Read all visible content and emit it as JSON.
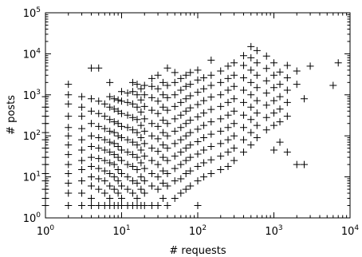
{
  "chart_data": {
    "type": "scatter",
    "title": "",
    "xlabel": "# requests",
    "ylabel": "# posts",
    "x_scale": "log",
    "y_scale": "log",
    "xlim": [
      1,
      10000
    ],
    "ylim": [
      1,
      100000
    ],
    "grid": false,
    "legend": "none",
    "marker": "+",
    "color": "#000000",
    "x_ticks": [
      {
        "value": 1,
        "base": "10",
        "exp": "0"
      },
      {
        "value": 10,
        "base": "10",
        "exp": "1"
      },
      {
        "value": 100,
        "base": "10",
        "exp": "2"
      },
      {
        "value": 1000,
        "base": "10",
        "exp": "3"
      },
      {
        "value": 10000,
        "base": "10",
        "exp": "4"
      }
    ],
    "y_ticks": [
      {
        "value": 1,
        "base": "10",
        "exp": "0"
      },
      {
        "value": 10,
        "base": "10",
        "exp": "1"
      },
      {
        "value": 100,
        "base": "10",
        "exp": "2"
      },
      {
        "value": 1000,
        "base": "10",
        "exp": "3"
      },
      {
        "value": 10000,
        "base": "10",
        "exp": "4"
      },
      {
        "value": 100000,
        "base": "10",
        "exp": "5"
      }
    ],
    "points": [
      [
        1,
        2
      ],
      [
        1,
        3
      ],
      [
        1,
        5
      ],
      [
        1,
        8
      ],
      [
        1,
        12
      ],
      [
        1,
        20
      ],
      [
        1,
        30
      ],
      [
        1,
        50
      ],
      [
        1,
        80
      ],
      [
        1,
        120
      ],
      [
        1,
        200
      ],
      [
        1,
        300
      ],
      [
        1,
        500
      ],
      [
        1,
        900
      ],
      [
        2,
        2
      ],
      [
        2,
        4
      ],
      [
        2,
        7
      ],
      [
        2,
        12
      ],
      [
        2,
        20
      ],
      [
        2,
        35
      ],
      [
        2,
        60
      ],
      [
        2,
        100
      ],
      [
        2,
        160
      ],
      [
        2,
        300
      ],
      [
        2,
        600
      ],
      [
        2,
        1000
      ],
      [
        2,
        1800
      ],
      [
        3,
        2
      ],
      [
        3,
        4
      ],
      [
        3,
        8
      ],
      [
        3,
        15
      ],
      [
        3,
        25
      ],
      [
        3,
        45
      ],
      [
        3,
        80
      ],
      [
        3,
        150
      ],
      [
        3,
        300
      ],
      [
        3,
        500
      ],
      [
        3,
        900
      ],
      [
        4,
        2
      ],
      [
        4,
        3
      ],
      [
        4,
        6
      ],
      [
        4,
        10
      ],
      [
        4,
        18
      ],
      [
        4,
        30
      ],
      [
        4,
        55
      ],
      [
        4,
        100
      ],
      [
        4,
        200
      ],
      [
        4,
        400
      ],
      [
        4,
        800
      ],
      [
        4,
        4500
      ],
      [
        5,
        2
      ],
      [
        5,
        5
      ],
      [
        5,
        9
      ],
      [
        5,
        16
      ],
      [
        5,
        28
      ],
      [
        5,
        50
      ],
      [
        5,
        90
      ],
      [
        5,
        170
      ],
      [
        5,
        350
      ],
      [
        5,
        700
      ],
      [
        5,
        4500
      ],
      [
        6,
        2
      ],
      [
        6,
        4
      ],
      [
        6,
        8
      ],
      [
        6,
        14
      ],
      [
        6,
        25
      ],
      [
        6,
        45
      ],
      [
        6,
        80
      ],
      [
        6,
        150
      ],
      [
        6,
        300
      ],
      [
        6,
        600
      ],
      [
        7,
        2
      ],
      [
        7,
        3
      ],
      [
        7,
        6
      ],
      [
        7,
        12
      ],
      [
        7,
        22
      ],
      [
        7,
        40
      ],
      [
        7,
        70
      ],
      [
        7,
        130
      ],
      [
        7,
        250
      ],
      [
        7,
        500
      ],
      [
        7,
        900
      ],
      [
        7,
        2000
      ],
      [
        8,
        2
      ],
      [
        8,
        5
      ],
      [
        8,
        10
      ],
      [
        8,
        20
      ],
      [
        8,
        35
      ],
      [
        8,
        65
      ],
      [
        8,
        120
      ],
      [
        8,
        220
      ],
      [
        8,
        450
      ],
      [
        8,
        800
      ],
      [
        9,
        2
      ],
      [
        9,
        4
      ],
      [
        9,
        8
      ],
      [
        9,
        15
      ],
      [
        9,
        30
      ],
      [
        9,
        55
      ],
      [
        9,
        100
      ],
      [
        9,
        200
      ],
      [
        9,
        400
      ],
      [
        9,
        750
      ],
      [
        10,
        2
      ],
      [
        10,
        3
      ],
      [
        10,
        6
      ],
      [
        10,
        12
      ],
      [
        10,
        25
      ],
      [
        10,
        45
      ],
      [
        10,
        90
      ],
      [
        10,
        170
      ],
      [
        10,
        350
      ],
      [
        10,
        700
      ],
      [
        10,
        1200
      ],
      [
        12,
        2
      ],
      [
        12,
        5
      ],
      [
        12,
        10
      ],
      [
        12,
        20
      ],
      [
        12,
        40
      ],
      [
        12,
        80
      ],
      [
        12,
        160
      ],
      [
        12,
        320
      ],
      [
        12,
        650
      ],
      [
        12,
        1100
      ],
      [
        14,
        2
      ],
      [
        14,
        4
      ],
      [
        14,
        8
      ],
      [
        14,
        18
      ],
      [
        14,
        35
      ],
      [
        14,
        70
      ],
      [
        14,
        140
      ],
      [
        14,
        280
      ],
      [
        14,
        600
      ],
      [
        14,
        1200
      ],
      [
        14,
        2000
      ],
      [
        16,
        2
      ],
      [
        16,
        3
      ],
      [
        16,
        7
      ],
      [
        16,
        15
      ],
      [
        16,
        30
      ],
      [
        16,
        60
      ],
      [
        16,
        120
      ],
      [
        16,
        250
      ],
      [
        16,
        500
      ],
      [
        16,
        1000
      ],
      [
        16,
        1800
      ],
      [
        18,
        2
      ],
      [
        18,
        5
      ],
      [
        18,
        10
      ],
      [
        18,
        22
      ],
      [
        18,
        45
      ],
      [
        18,
        90
      ],
      [
        18,
        180
      ],
      [
        18,
        380
      ],
      [
        18,
        750
      ],
      [
        18,
        1400
      ],
      [
        20,
        2
      ],
      [
        20,
        4
      ],
      [
        20,
        8
      ],
      [
        20,
        16
      ],
      [
        20,
        32
      ],
      [
        20,
        65
      ],
      [
        20,
        130
      ],
      [
        20,
        260
      ],
      [
        20,
        520
      ],
      [
        20,
        1000
      ],
      [
        20,
        1700
      ],
      [
        25,
        2
      ],
      [
        25,
        6
      ],
      [
        25,
        12
      ],
      [
        25,
        25
      ],
      [
        25,
        50
      ],
      [
        25,
        100
      ],
      [
        25,
        200
      ],
      [
        25,
        420
      ],
      [
        25,
        850
      ],
      [
        25,
        1600
      ],
      [
        25,
        2500
      ],
      [
        30,
        2
      ],
      [
        30,
        5
      ],
      [
        30,
        10
      ],
      [
        30,
        20
      ],
      [
        30,
        42
      ],
      [
        30,
        85
      ],
      [
        30,
        170
      ],
      [
        30,
        350
      ],
      [
        30,
        700
      ],
      [
        30,
        1400
      ],
      [
        30,
        3000
      ],
      [
        35,
        3
      ],
      [
        35,
        7
      ],
      [
        35,
        14
      ],
      [
        35,
        30
      ],
      [
        35,
        60
      ],
      [
        35,
        120
      ],
      [
        35,
        240
      ],
      [
        35,
        500
      ],
      [
        35,
        1000
      ],
      [
        35,
        2000
      ],
      [
        40,
        2
      ],
      [
        40,
        6
      ],
      [
        40,
        12
      ],
      [
        40,
        25
      ],
      [
        40,
        50
      ],
      [
        40,
        100
      ],
      [
        40,
        200
      ],
      [
        40,
        420
      ],
      [
        40,
        850
      ],
      [
        40,
        1700
      ],
      [
        40,
        4500
      ],
      [
        50,
        3
      ],
      [
        50,
        8
      ],
      [
        50,
        16
      ],
      [
        50,
        32
      ],
      [
        50,
        65
      ],
      [
        50,
        130
      ],
      [
        50,
        260
      ],
      [
        50,
        520
      ],
      [
        50,
        1000
      ],
      [
        50,
        2000
      ],
      [
        50,
        3500
      ],
      [
        60,
        4
      ],
      [
        60,
        9
      ],
      [
        60,
        20
      ],
      [
        60,
        40
      ],
      [
        60,
        80
      ],
      [
        60,
        160
      ],
      [
        60,
        320
      ],
      [
        60,
        650
      ],
      [
        60,
        1300
      ],
      [
        60,
        2500
      ],
      [
        70,
        5
      ],
      [
        70,
        12
      ],
      [
        70,
        25
      ],
      [
        70,
        50
      ],
      [
        70,
        100
      ],
      [
        70,
        200
      ],
      [
        70,
        400
      ],
      [
        70,
        800
      ],
      [
        70,
        1600
      ],
      [
        70,
        3000
      ],
      [
        80,
        6
      ],
      [
        80,
        14
      ],
      [
        80,
        30
      ],
      [
        80,
        60
      ],
      [
        80,
        120
      ],
      [
        80,
        240
      ],
      [
        80,
        480
      ],
      [
        80,
        950
      ],
      [
        80,
        1800
      ],
      [
        80,
        3500
      ],
      [
        100,
        2
      ],
      [
        100,
        8
      ],
      [
        100,
        18
      ],
      [
        100,
        36
      ],
      [
        100,
        72
      ],
      [
        100,
        145
      ],
      [
        100,
        290
      ],
      [
        100,
        580
      ],
      [
        100,
        1150
      ],
      [
        100,
        2300
      ],
      [
        100,
        4000
      ],
      [
        120,
        10
      ],
      [
        120,
        22
      ],
      [
        120,
        45
      ],
      [
        120,
        90
      ],
      [
        120,
        180
      ],
      [
        120,
        360
      ],
      [
        120,
        720
      ],
      [
        120,
        1400
      ],
      [
        120,
        2600
      ],
      [
        150,
        12
      ],
      [
        150,
        26
      ],
      [
        150,
        55
      ],
      [
        150,
        110
      ],
      [
        150,
        220
      ],
      [
        150,
        440
      ],
      [
        150,
        880
      ],
      [
        150,
        1700
      ],
      [
        150,
        3000
      ],
      [
        150,
        7000
      ],
      [
        200,
        15
      ],
      [
        200,
        32
      ],
      [
        200,
        65
      ],
      [
        200,
        130
      ],
      [
        200,
        260
      ],
      [
        200,
        520
      ],
      [
        200,
        1000
      ],
      [
        200,
        2000
      ],
      [
        200,
        3800
      ],
      [
        250,
        18
      ],
      [
        250,
        40
      ],
      [
        250,
        80
      ],
      [
        250,
        160
      ],
      [
        250,
        320
      ],
      [
        250,
        650
      ],
      [
        250,
        1300
      ],
      [
        250,
        2500
      ],
      [
        250,
        5000
      ],
      [
        300,
        25
      ],
      [
        300,
        50
      ],
      [
        300,
        100
      ],
      [
        300,
        200
      ],
      [
        300,
        400
      ],
      [
        300,
        800
      ],
      [
        300,
        1600
      ],
      [
        300,
        3000
      ],
      [
        300,
        6000
      ],
      [
        400,
        40
      ],
      [
        400,
        80
      ],
      [
        400,
        160
      ],
      [
        400,
        320
      ],
      [
        400,
        650
      ],
      [
        400,
        1300
      ],
      [
        400,
        2600
      ],
      [
        400,
        5200
      ],
      [
        400,
        9000
      ],
      [
        500,
        60
      ],
      [
        500,
        120
      ],
      [
        500,
        250
      ],
      [
        500,
        500
      ],
      [
        500,
        1000
      ],
      [
        500,
        2000
      ],
      [
        500,
        4000
      ],
      [
        500,
        8000
      ],
      [
        500,
        15000
      ],
      [
        600,
        90
      ],
      [
        600,
        180
      ],
      [
        600,
        360
      ],
      [
        600,
        720
      ],
      [
        600,
        1500
      ],
      [
        600,
        3000
      ],
      [
        600,
        6000
      ],
      [
        600,
        12000
      ],
      [
        800,
        140
      ],
      [
        800,
        280
      ],
      [
        800,
        560
      ],
      [
        800,
        1100
      ],
      [
        800,
        2200
      ],
      [
        800,
        4400
      ],
      [
        800,
        8800
      ],
      [
        1000,
        45
      ],
      [
        1000,
        180
      ],
      [
        1000,
        360
      ],
      [
        1000,
        720
      ],
      [
        1000,
        1500
      ],
      [
        1000,
        3000
      ],
      [
        1000,
        6000
      ],
      [
        1200,
        70
      ],
      [
        1200,
        220
      ],
      [
        1200,
        450
      ],
      [
        1200,
        900
      ],
      [
        1200,
        1800
      ],
      [
        1200,
        3600
      ],
      [
        1500,
        40
      ],
      [
        1500,
        300
      ],
      [
        1500,
        650
      ],
      [
        1500,
        1300
      ],
      [
        1500,
        2600
      ],
      [
        1500,
        5200
      ],
      [
        2000,
        20
      ],
      [
        2000,
        1800
      ],
      [
        2000,
        3800
      ],
      [
        2500,
        20
      ],
      [
        2500,
        800
      ],
      [
        3000,
        5000
      ],
      [
        6000,
        1700
      ],
      [
        7000,
        6000
      ]
    ]
  }
}
